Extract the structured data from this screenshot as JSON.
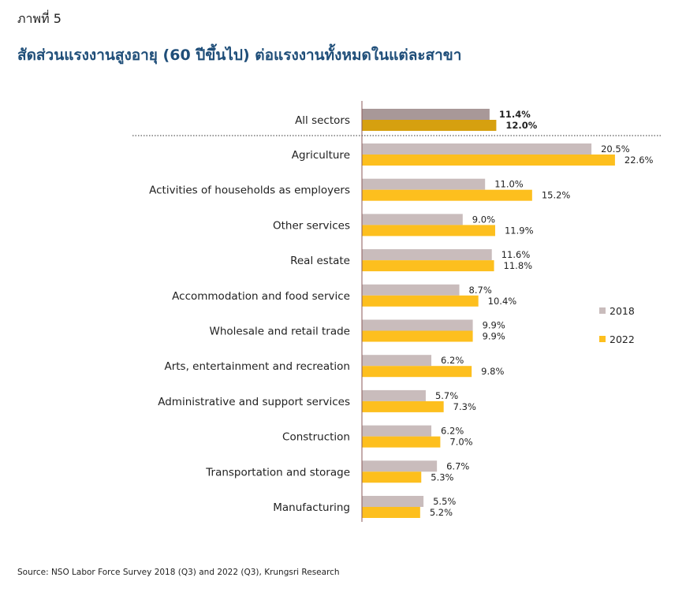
{
  "figure_label": "ภาพที่ 5",
  "title": "สัดส่วนแรงงานสูงอายุ (60 ปีขึ้นไป) ต่อแรงงานทั้งหมดในแต่ละสาขา",
  "source": "Source: NSO Labor Force Survey 2018 (Q3) and 2022 (Q3), Krungsri Research",
  "colors": {
    "2018": "#c9bcbc",
    "2022": "#fdbf1e",
    "2018_total": "#a89898",
    "2022_total": "#d6a00f",
    "total_label_2018": "#3a3a3a",
    "total_label_2022": "#b8860b"
  },
  "chart_data": {
    "type": "bar",
    "orientation": "horizontal",
    "categories": [
      "All sectors",
      "Agriculture",
      "Activities of households as employers",
      "Other services",
      "Real estate",
      "Accommodation and food service",
      "Wholesale and retail trade",
      "Arts, entertainment and recreation",
      "Administrative and support services",
      "Construction",
      "Transportation and storage",
      "Manufacturing"
    ],
    "series": [
      {
        "name": "2018",
        "values": [
          11.4,
          20.5,
          11.0,
          9.0,
          11.6,
          8.7,
          9.9,
          6.2,
          5.7,
          6.2,
          6.7,
          5.5
        ],
        "labels": [
          "11.4%",
          "20.5%",
          "11.0%",
          "9.0%",
          "11.6%",
          "8.7%",
          "9.9%",
          "6.2%",
          "5.7%",
          "6.2%",
          "6.7%",
          "5.5%"
        ]
      },
      {
        "name": "2022",
        "values": [
          12.0,
          22.6,
          15.2,
          11.9,
          11.8,
          10.4,
          9.9,
          9.8,
          7.3,
          7.0,
          5.3,
          5.2
        ],
        "labels": [
          "12.0%",
          "22.6%",
          "15.2%",
          "11.9%",
          "11.8%",
          "10.4%",
          "9.9%",
          "9.8%",
          "7.3%",
          "7.0%",
          "5.3%",
          "5.2%"
        ]
      }
    ],
    "unit": "%",
    "xlim": [
      0,
      25
    ],
    "legend": "right",
    "grid": false,
    "separator_after_first_category": true
  }
}
